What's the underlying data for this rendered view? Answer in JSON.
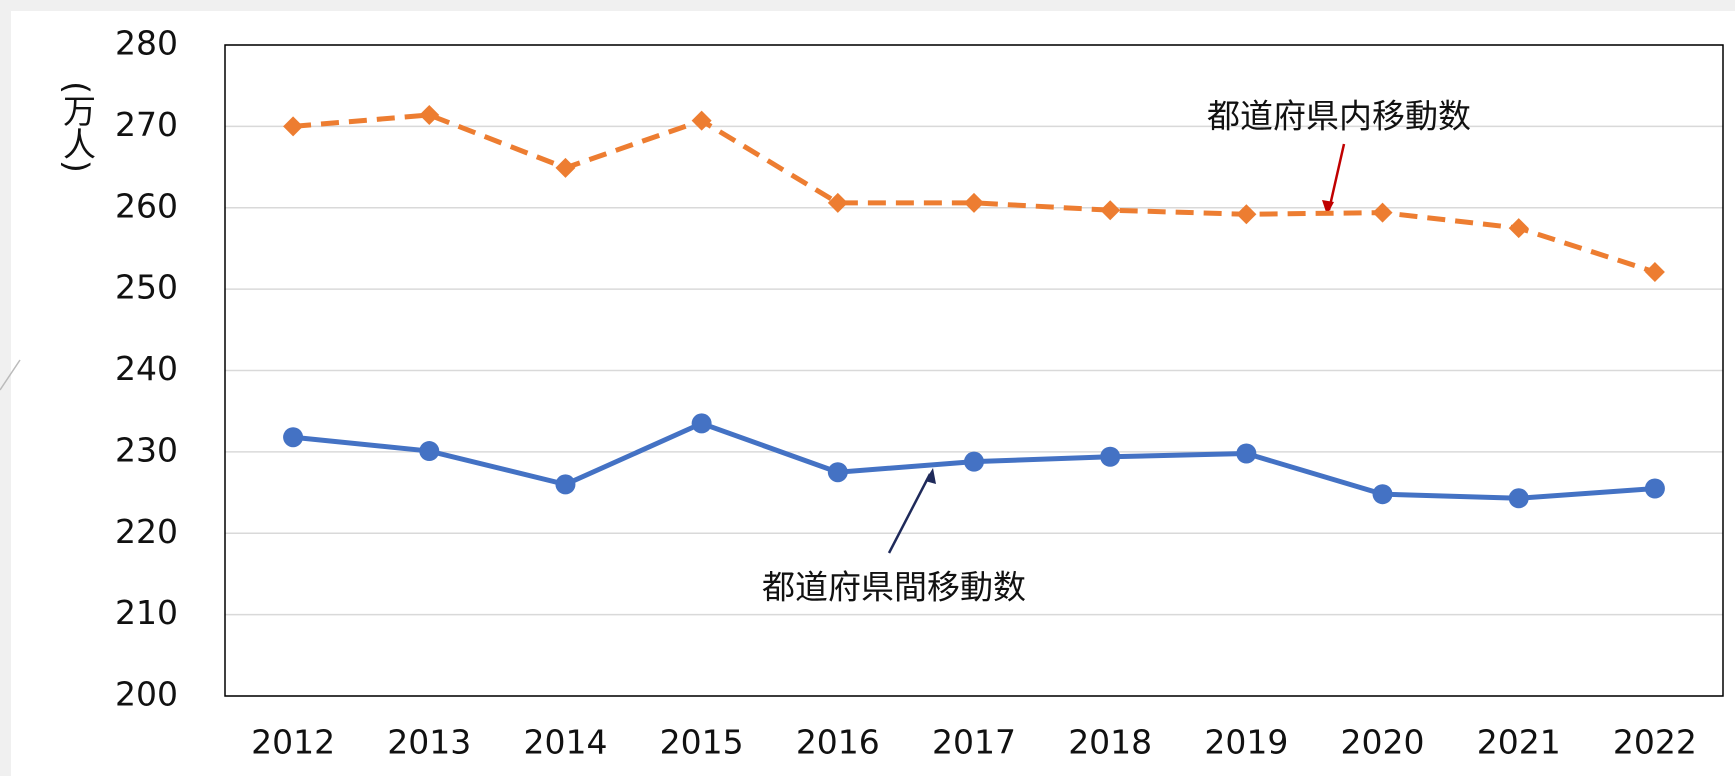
{
  "chart_data": {
    "type": "line",
    "y_label": "(万人)",
    "categories": [
      "2012",
      "2013",
      "2014",
      "2015",
      "2016",
      "2017",
      "2018",
      "2019",
      "2020",
      "2021",
      "2022"
    ],
    "series": [
      {
        "name": "都道府県内移動数",
        "color": "#ed7d31",
        "line_style": "dashed",
        "marker": "diamond",
        "values": [
          270.0,
          271.4,
          264.9,
          270.7,
          260.6,
          260.6,
          259.7,
          259.2,
          259.4,
          257.5,
          252.1
        ]
      },
      {
        "name": "都道府県間移動数",
        "color": "#4472c4",
        "line_style": "solid",
        "marker": "circle",
        "values": [
          231.8,
          230.1,
          226.0,
          233.5,
          227.5,
          228.8,
          229.4,
          229.8,
          224.8,
          224.3,
          225.5
        ]
      }
    ],
    "ylim": [
      200,
      280
    ],
    "yticks": [
      200,
      210,
      220,
      230,
      240,
      250,
      260,
      270,
      280
    ],
    "grid": true
  }
}
